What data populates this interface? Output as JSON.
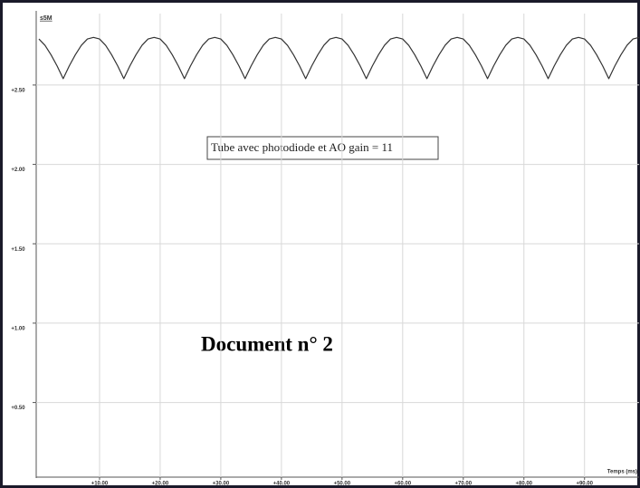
{
  "chart_data": {
    "type": "line",
    "y_label": "s5M",
    "x_label": "Temps (ms)",
    "annotations": [
      "Tube avec photodiode et AO gain = 11",
      "Document n° 2"
    ],
    "x": [
      0,
      1,
      2,
      3,
      4,
      5,
      6,
      7,
      8,
      9,
      10,
      11,
      12,
      13,
      14,
      15,
      16,
      17,
      18,
      19,
      20,
      21,
      22,
      23,
      24,
      25,
      26,
      27,
      28,
      29,
      30,
      31,
      32,
      33,
      34,
      35,
      36,
      37,
      38,
      39,
      40,
      41,
      42,
      43,
      44,
      45,
      46,
      47,
      48,
      49,
      50,
      51,
      52,
      53,
      54,
      55,
      56,
      57,
      58,
      59,
      60,
      61,
      62,
      63,
      64,
      65,
      66,
      67,
      68,
      69,
      70,
      71,
      72,
      73,
      74,
      75,
      76,
      77,
      78,
      79,
      80,
      81,
      82,
      83,
      84,
      85,
      86,
      87,
      88,
      89,
      90,
      91,
      92,
      93,
      94,
      95,
      96,
      97,
      98,
      99
    ],
    "series": [
      {
        "name": "s5M",
        "color": "#333333",
        "values": [
          2.79,
          2.75,
          2.69,
          2.62,
          2.54,
          2.62,
          2.69,
          2.75,
          2.79,
          2.8,
          2.79,
          2.75,
          2.69,
          2.62,
          2.54,
          2.62,
          2.69,
          2.75,
          2.79,
          2.8,
          2.79,
          2.75,
          2.69,
          2.62,
          2.54,
          2.62,
          2.69,
          2.75,
          2.79,
          2.8,
          2.79,
          2.75,
          2.69,
          2.62,
          2.54,
          2.62,
          2.69,
          2.75,
          2.79,
          2.8,
          2.79,
          2.75,
          2.69,
          2.62,
          2.54,
          2.62,
          2.69,
          2.75,
          2.79,
          2.8,
          2.79,
          2.75,
          2.69,
          2.62,
          2.54,
          2.62,
          2.69,
          2.75,
          2.79,
          2.8,
          2.79,
          2.75,
          2.69,
          2.62,
          2.54,
          2.62,
          2.69,
          2.75,
          2.79,
          2.8,
          2.79,
          2.75,
          2.69,
          2.62,
          2.54,
          2.62,
          2.69,
          2.75,
          2.79,
          2.8,
          2.79,
          2.75,
          2.69,
          2.62,
          2.54,
          2.62,
          2.69,
          2.75,
          2.79,
          2.8,
          2.79,
          2.75,
          2.69,
          2.62,
          2.54,
          2.62,
          2.69,
          2.75,
          2.79,
          2.8
        ]
      }
    ],
    "xlim": [
      0,
      99
    ],
    "ylim": [
      0.03,
      2.95
    ],
    "xticks": [
      {
        "value": 10,
        "label": "+10.00"
      },
      {
        "value": 20,
        "label": "+20.00"
      },
      {
        "value": 30,
        "label": "+30.00"
      },
      {
        "value": 40,
        "label": "+40.00"
      },
      {
        "value": 50,
        "label": "+50.00"
      },
      {
        "value": 60,
        "label": "+60.00"
      },
      {
        "value": 70,
        "label": "+70.00"
      },
      {
        "value": 80,
        "label": "+80.00"
      },
      {
        "value": 90,
        "label": "+90.00"
      }
    ],
    "yticks": [
      {
        "value": 0.5,
        "label": "+0.50"
      },
      {
        "value": 1,
        "label": "+1.00"
      },
      {
        "value": 1.5,
        "label": "+1.50"
      },
      {
        "value": 2,
        "label": "+2.00"
      },
      {
        "value": 2.5,
        "label": "+2.50"
      }
    ],
    "grid": true
  }
}
